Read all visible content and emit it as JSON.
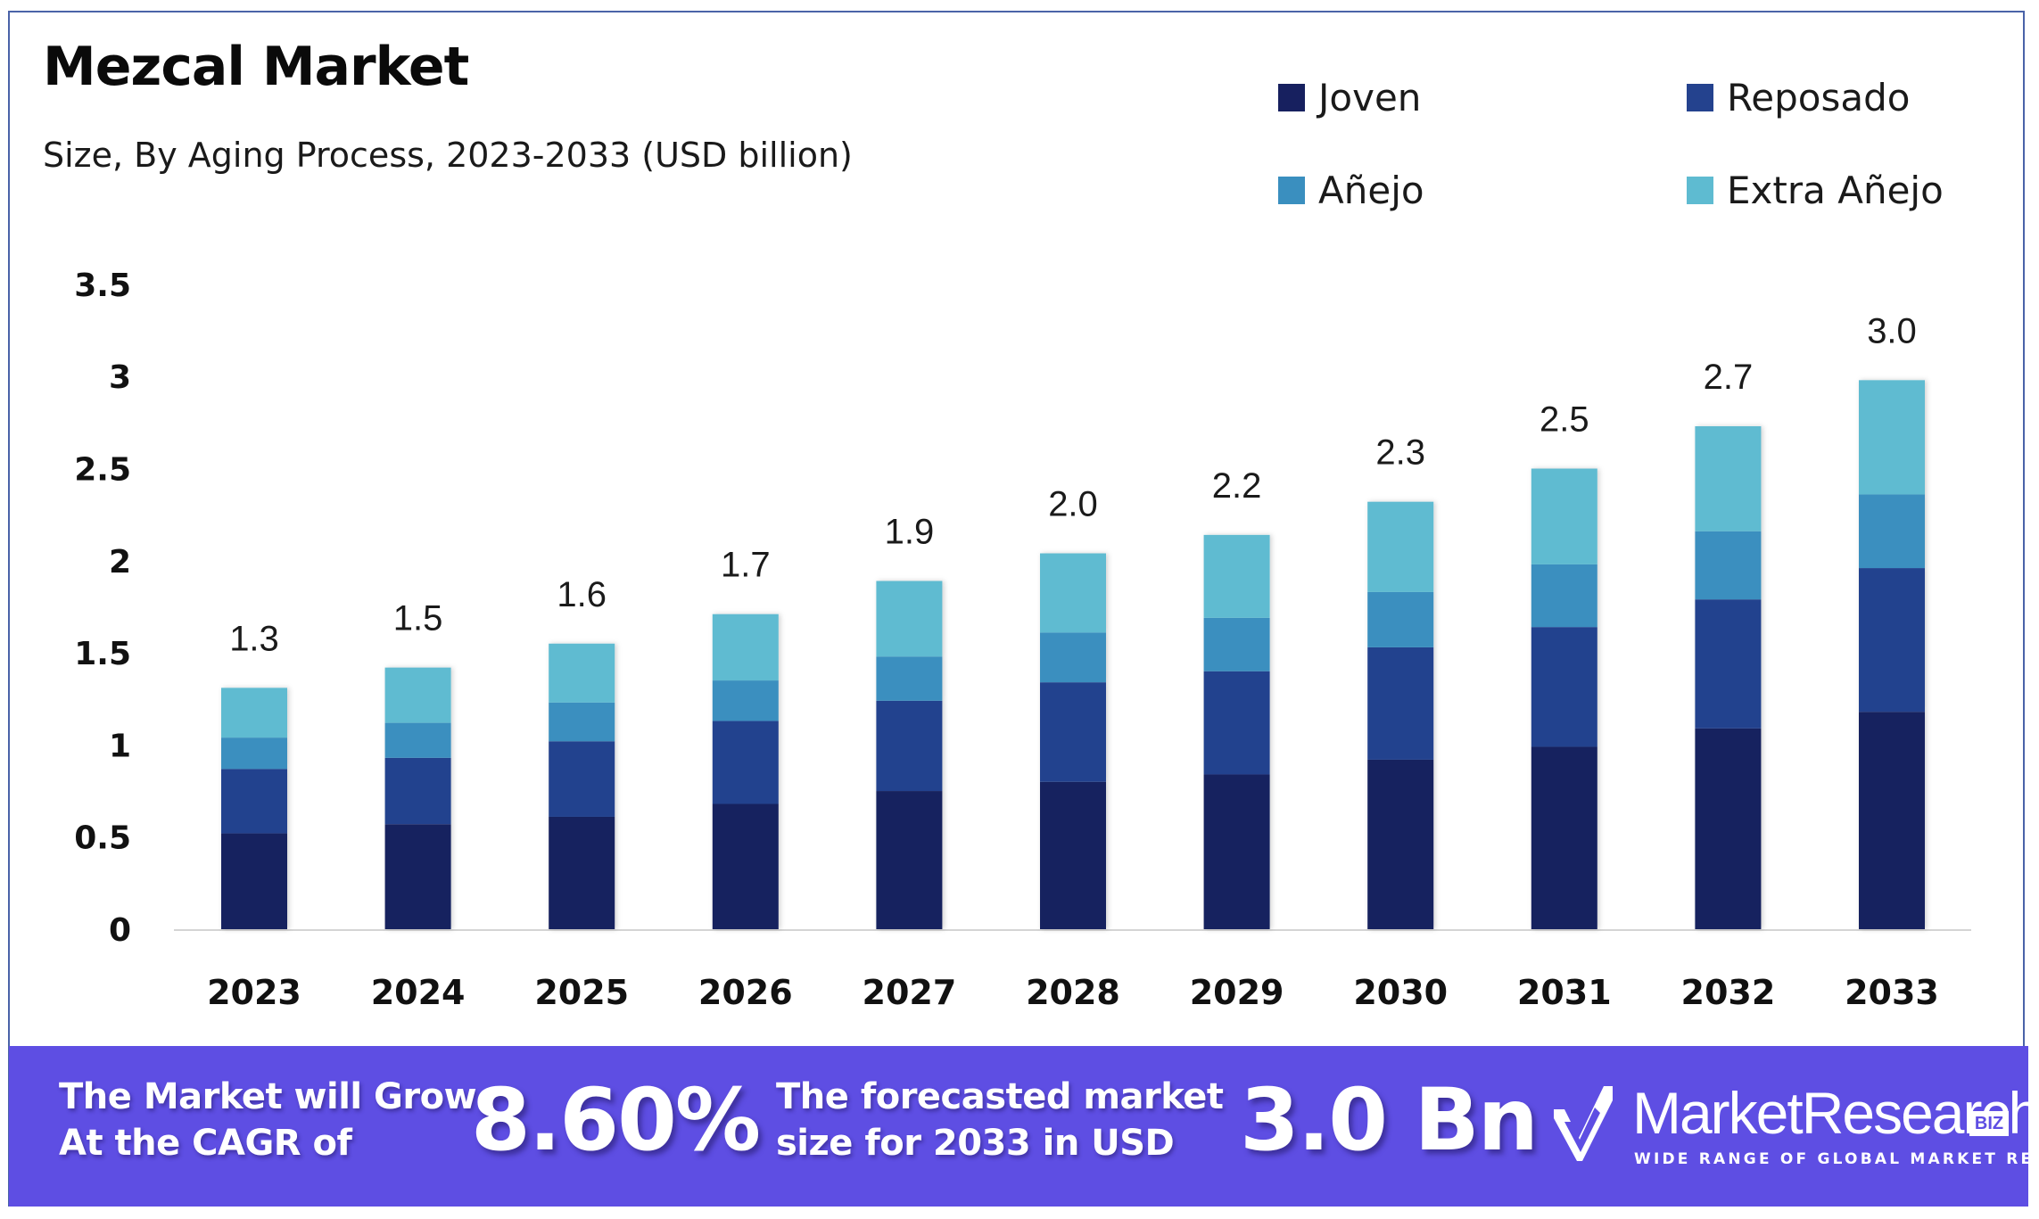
{
  "header": {
    "title": "Mezcal Market",
    "subtitle": "Size, By Aging Process, 2023-2033 (USD billion)"
  },
  "legend": [
    {
      "label": "Joven",
      "color": "#17205f"
    },
    {
      "label": "Reposado",
      "color": "#24428e"
    },
    {
      "label": "Añejo",
      "color": "#3a8fbf"
    },
    {
      "label": "Extra Añejo",
      "color": "#5ebbd1"
    }
  ],
  "chart_data": {
    "type": "bar",
    "stacked": true,
    "title": "Mezcal Market",
    "subtitle": "Size, By Aging Process, 2023-2033 (USD billion)",
    "xlabel": "",
    "ylabel": "",
    "ylim": [
      0,
      3.5
    ],
    "yticks": [
      "0",
      "0.5",
      "1",
      "1.5",
      "2",
      "2.5",
      "3",
      "3.5"
    ],
    "ytick_values": [
      0,
      0.5,
      1,
      1.5,
      2,
      2.5,
      3,
      3.5
    ],
    "grid": false,
    "legend_position": "top-right",
    "categories": [
      "2023",
      "2024",
      "2025",
      "2026",
      "2027",
      "2028",
      "2029",
      "2030",
      "2031",
      "2032",
      "2033"
    ],
    "series": [
      {
        "name": "Joven",
        "color": "#17205f",
        "values": [
          0.52,
          0.57,
          0.61,
          0.68,
          0.75,
          0.8,
          0.84,
          0.92,
          0.99,
          1.09,
          1.18
        ]
      },
      {
        "name": "Reposado",
        "color": "#24428e",
        "values": [
          0.35,
          0.36,
          0.41,
          0.45,
          0.49,
          0.54,
          0.56,
          0.61,
          0.65,
          0.7,
          0.78
        ]
      },
      {
        "name": "Añejo",
        "color": "#3a8fbf",
        "values": [
          0.17,
          0.19,
          0.21,
          0.22,
          0.24,
          0.27,
          0.29,
          0.3,
          0.34,
          0.37,
          0.4
        ]
      },
      {
        "name": "Extra Añejo",
        "color": "#5ebbd1",
        "values": [
          0.27,
          0.3,
          0.32,
          0.36,
          0.41,
          0.43,
          0.45,
          0.49,
          0.52,
          0.57,
          0.62
        ]
      }
    ],
    "totals_labels": [
      "1.3",
      "1.5",
      "1.6",
      "1.7",
      "1.9",
      "2.0",
      "2.2",
      "2.3",
      "2.5",
      "2.7",
      "3.0"
    ]
  },
  "banner": {
    "cagr_text_line1": "The Market will Grow",
    "cagr_text_line2": "At the CAGR of",
    "cagr_value": "8.60%",
    "forecast_text_line1": "The forecasted market",
    "forecast_text_line2": "size for 2033 in USD",
    "forecast_value": "3.0 Bn",
    "background_color": "#5e4ee3"
  },
  "logo": {
    "icon": "checkmark-shield-icon",
    "name": "MarketResearch",
    "badge": "BIZ",
    "tagline": "WIDE RANGE OF GLOBAL MARKET REPORTS"
  }
}
